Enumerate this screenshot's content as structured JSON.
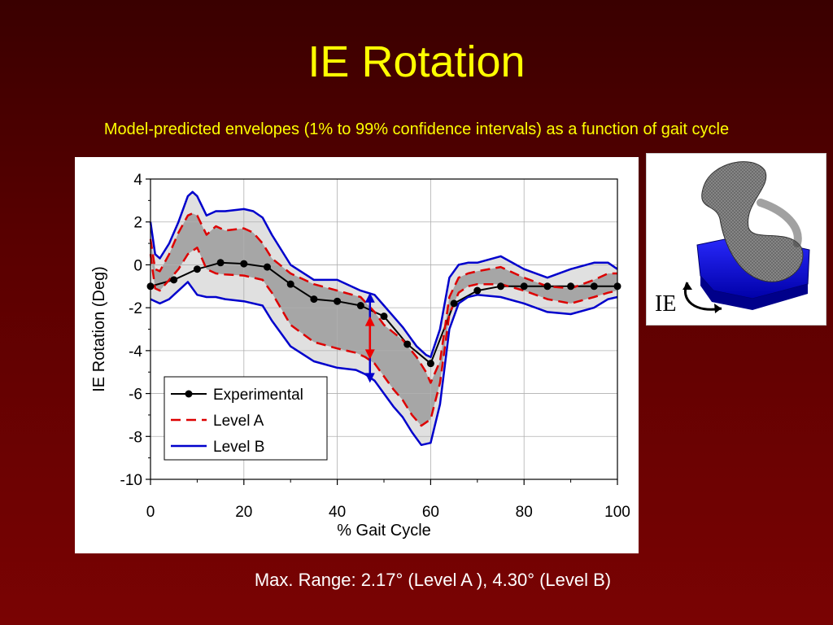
{
  "title": "IE Rotation",
  "subtitle": "Model-predicted envelopes (1% to 99% confidence intervals) as a function of gait cycle",
  "footer": "Max. Range: 2.17° (Level A ), 4.30° (Level B)",
  "knee_image_label": "IE",
  "colors": {
    "experimental": "#000000",
    "level_a": "#dd0000",
    "level_b": "#0000cc",
    "band_a": "#a6a6a6",
    "band_b": "#e0e0e0",
    "arrow_a": "#ee0000",
    "arrow_b": "#0000cc"
  },
  "chart_data": {
    "type": "line",
    "xlabel": "% Gait Cycle",
    "ylabel": "IE Rotation (Deg)",
    "xlim": [
      0,
      100
    ],
    "ylim": [
      -10,
      4
    ],
    "xticks": [
      0,
      20,
      40,
      60,
      80,
      100
    ],
    "yticks": [
      4,
      2,
      0,
      -2,
      -4,
      -6,
      -8,
      -10
    ],
    "grid": true,
    "legend_position": "bottom-left",
    "legend": [
      "Experimental",
      "Level A",
      "Level B"
    ],
    "series": [
      {
        "name": "Experimental",
        "style": "solid-with-markers",
        "x": [
          0,
          5,
          10,
          15,
          20,
          25,
          30,
          35,
          40,
          45,
          50,
          55,
          60,
          65,
          70,
          75,
          80,
          85,
          90,
          95,
          100
        ],
        "y": [
          -1.0,
          -0.7,
          -0.2,
          0.1,
          0.05,
          -0.1,
          -0.9,
          -1.6,
          -1.7,
          -1.9,
          -2.4,
          -3.7,
          -4.6,
          -1.8,
          -1.2,
          -1.0,
          -1.0,
          -1.0,
          -1.0,
          -1.0,
          -1.0
        ]
      },
      {
        "name": "Level A upper",
        "legend_name": "Level A",
        "style": "dashed",
        "x": [
          0,
          1,
          2,
          4,
          6,
          8,
          9,
          10,
          12,
          14,
          16,
          20,
          22,
          24,
          26,
          30,
          35,
          40,
          45,
          48,
          50,
          54,
          57,
          59,
          60,
          62,
          64,
          66,
          68,
          70,
          75,
          80,
          85,
          90,
          95,
          98,
          100
        ],
        "y": [
          1.2,
          -0.2,
          -0.3,
          0.5,
          1.5,
          2.3,
          2.4,
          2.3,
          1.4,
          1.8,
          1.6,
          1.7,
          1.5,
          1.0,
          0.3,
          -0.4,
          -0.9,
          -1.2,
          -1.5,
          -2.2,
          -2.8,
          -3.5,
          -4.3,
          -5.0,
          -5.5,
          -4.5,
          -1.5,
          -0.6,
          -0.4,
          -0.3,
          -0.1,
          -0.6,
          -1.0,
          -1.1,
          -0.7,
          -0.4,
          -0.4
        ]
      },
      {
        "name": "Level A lower",
        "style": "dashed",
        "x": [
          0,
          1,
          2,
          4,
          6,
          8,
          10,
          12,
          14,
          16,
          20,
          24,
          26,
          30,
          35,
          40,
          44,
          46,
          48,
          50,
          52,
          54,
          56,
          58,
          60,
          62,
          64,
          66,
          68,
          70,
          75,
          80,
          85,
          90,
          95,
          98,
          100
        ],
        "y": [
          0.5,
          -1.1,
          -1.2,
          -0.7,
          -0.2,
          0.5,
          0.8,
          -0.2,
          -0.4,
          -0.45,
          -0.5,
          -0.7,
          -1.3,
          -2.8,
          -3.6,
          -3.9,
          -4.1,
          -4.3,
          -4.6,
          -5.2,
          -5.8,
          -6.3,
          -7.0,
          -7.5,
          -7.2,
          -5.5,
          -2.3,
          -1.3,
          -1.0,
          -0.9,
          -0.9,
          -1.2,
          -1.6,
          -1.8,
          -1.5,
          -1.3,
          -1.2
        ]
      },
      {
        "name": "Level B upper",
        "legend_name": "Level B",
        "style": "solid",
        "x": [
          0,
          1,
          2,
          4,
          6,
          8,
          9,
          10,
          12,
          14,
          16,
          20,
          22,
          24,
          26,
          30,
          35,
          40,
          45,
          48,
          50,
          54,
          57,
          59,
          60,
          62,
          64,
          66,
          68,
          70,
          75,
          80,
          85,
          90,
          95,
          98,
          100
        ],
        "y": [
          2.0,
          0.5,
          0.3,
          1.0,
          2.0,
          3.2,
          3.4,
          3.2,
          2.3,
          2.5,
          2.5,
          2.6,
          2.5,
          2.2,
          1.4,
          0.0,
          -0.7,
          -0.7,
          -1.2,
          -1.4,
          -1.9,
          -2.9,
          -3.8,
          -4.2,
          -4.3,
          -3.0,
          -0.6,
          0.0,
          0.1,
          0.1,
          0.4,
          -0.2,
          -0.6,
          -0.2,
          0.1,
          0.1,
          -0.2
        ]
      },
      {
        "name": "Level B lower",
        "style": "solid",
        "x": [
          0,
          1,
          2,
          4,
          6,
          8,
          10,
          12,
          14,
          16,
          20,
          24,
          26,
          30,
          35,
          40,
          44,
          46,
          48,
          50,
          52,
          54,
          56,
          58,
          60,
          62,
          64,
          66,
          68,
          70,
          75,
          80,
          85,
          90,
          95,
          98,
          100
        ],
        "y": [
          -1.6,
          -1.7,
          -1.8,
          -1.6,
          -1.2,
          -0.8,
          -1.4,
          -1.5,
          -1.5,
          -1.6,
          -1.7,
          -1.9,
          -2.6,
          -3.8,
          -4.5,
          -4.8,
          -4.9,
          -5.1,
          -5.4,
          -6.0,
          -6.6,
          -7.1,
          -7.8,
          -8.4,
          -8.3,
          -6.5,
          -3.0,
          -1.8,
          -1.5,
          -1.4,
          -1.5,
          -1.8,
          -2.2,
          -2.3,
          -2.0,
          -1.6,
          -1.5
        ]
      }
    ],
    "annotations": [
      {
        "type": "double-arrow",
        "name": "Level B range",
        "x": 47,
        "y_from": -1.3,
        "y_to": -5.5
      },
      {
        "type": "double-arrow",
        "name": "Level A range",
        "x": 47,
        "y_from": -2.4,
        "y_to": -4.4
      }
    ]
  }
}
